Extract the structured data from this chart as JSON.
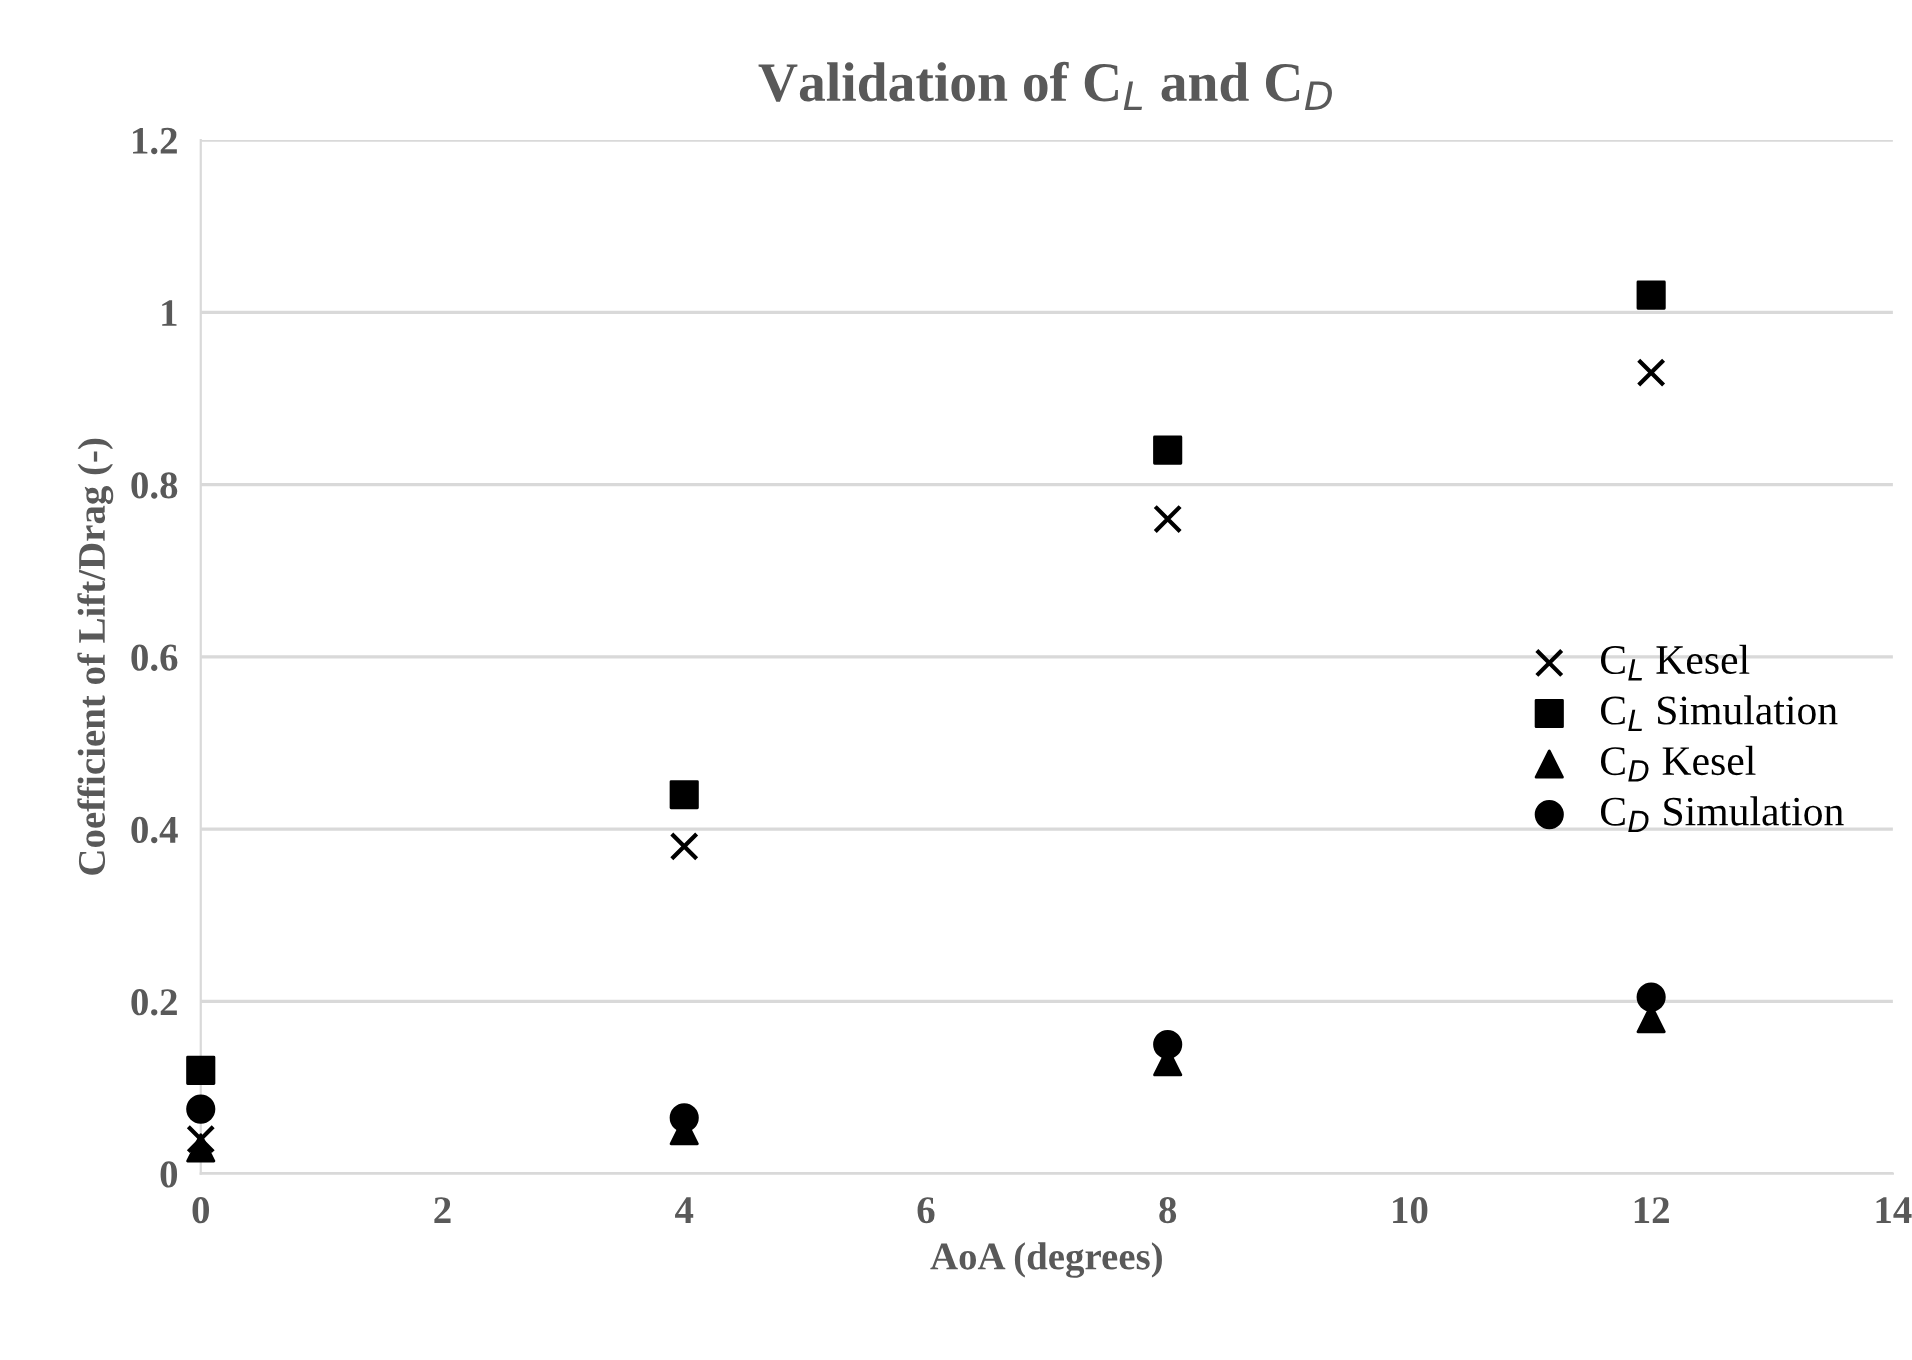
{
  "chart_data": {
    "type": "scatter",
    "title": "Validation of C$_{L}$ and C$_{D}$",
    "xlabel": "AoA (degrees)",
    "ylabel": "Coefficient of Lift/Drag (-)",
    "x": [
      0,
      4,
      8,
      12
    ],
    "series": [
      {
        "name": "C$_{L}$ Kesel",
        "color": "#000000",
        "marker": "cross",
        "values": [
          0.04,
          0.38,
          0.76,
          0.93
        ]
      },
      {
        "name": "C$_{L}$ Simulation",
        "color": "#000000",
        "marker": "square",
        "values": [
          0.12,
          0.44,
          0.84,
          1.02
        ]
      },
      {
        "name": "C$_{D}$ Kesel",
        "color": "#000000",
        "marker": "triangle",
        "values": [
          0.03,
          0.05,
          0.13,
          0.18
        ]
      },
      {
        "name": "C$_{D}$ Simulation",
        "color": "#000000",
        "marker": "circle",
        "values": [
          0.075,
          0.065,
          0.15,
          0.205
        ]
      }
    ],
    "xlim": [
      0,
      14
    ],
    "xticks": [
      0,
      2,
      4,
      6,
      8,
      10,
      12,
      14
    ],
    "ylim": [
      0,
      1.2
    ],
    "yticks": [
      0,
      0.2,
      0.4,
      0.6,
      0.8,
      1,
      1.2
    ],
    "grid": "y",
    "legend": "right"
  }
}
